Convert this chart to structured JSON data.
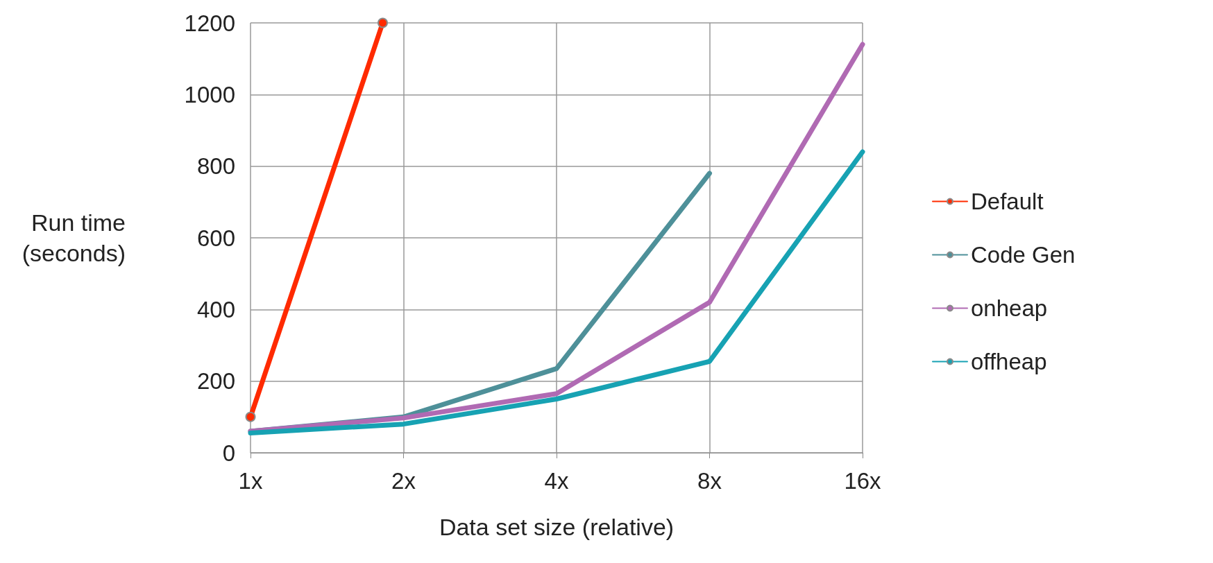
{
  "chart_data": {
    "type": "line",
    "xlabel": "Data set size (relative)",
    "ylabel": "Run time\n(seconds)",
    "log": "x",
    "xlim": [
      1,
      16
    ],
    "xticks": [
      {
        "value": 1,
        "label": "1x"
      },
      {
        "value": 2,
        "label": "2x"
      },
      {
        "value": 4,
        "label": "4x"
      },
      {
        "value": 8,
        "label": "8x"
      },
      {
        "value": 16,
        "label": "16x"
      }
    ],
    "ylim": [
      0,
      1200
    ],
    "yticks": [
      0,
      200,
      400,
      600,
      800,
      1000,
      1200
    ],
    "grid": true,
    "legend": "right",
    "line_style": "solid",
    "x": [
      1,
      2,
      4,
      8,
      16
    ],
    "series": [
      {
        "name": "Default",
        "color": "#ff2a00",
        "marker": "circle",
        "x": [
          1,
          1.82
        ],
        "values": [
          100,
          1200
        ]
      },
      {
        "name": "Code Gen",
        "color": "#4e9099",
        "marker": "none",
        "values": [
          60,
          100,
          235,
          780,
          null
        ]
      },
      {
        "name": "onheap",
        "color": "#b06ab3",
        "marker": "none",
        "values": [
          60,
          97,
          165,
          420,
          1140
        ]
      },
      {
        "name": "offheap",
        "color": "#17a2b3",
        "marker": "none",
        "values": [
          55,
          80,
          150,
          255,
          840
        ]
      }
    ]
  }
}
